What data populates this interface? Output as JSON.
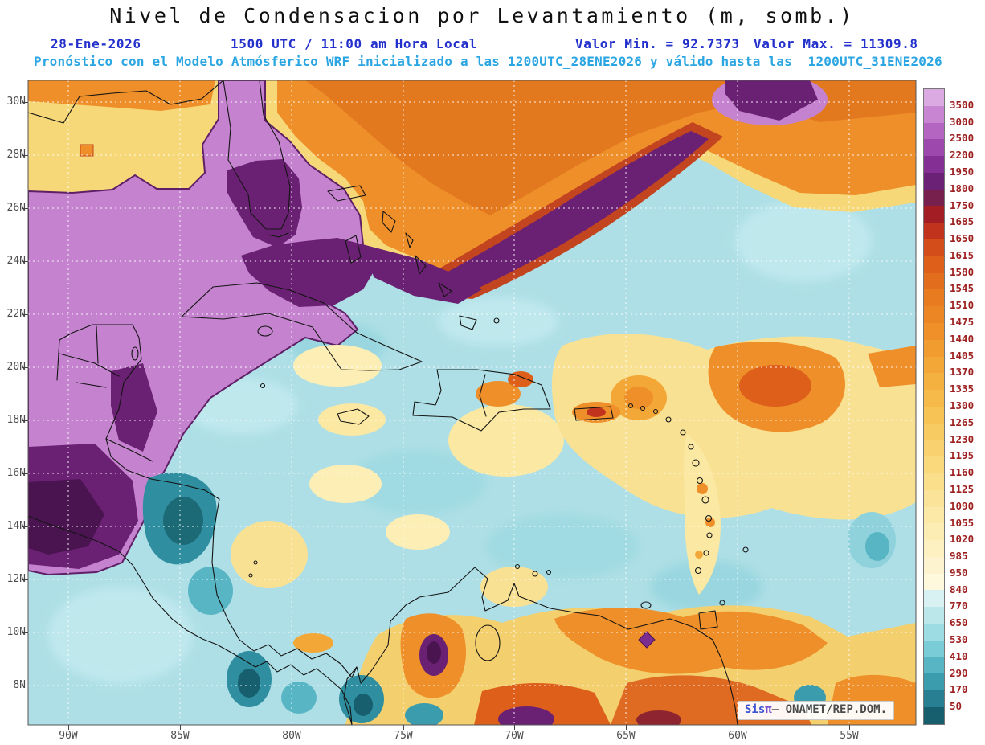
{
  "title": "Nivel de Condensacion por Levantamiento (m, somb.)",
  "header": {
    "date": "28-Ene-2026",
    "time": "1500 UTC / 11:00 am Hora Local",
    "min": "Valor Min. = 92.7373",
    "max": "Valor Max. = 11309.8",
    "forecast": "Pronóstico con el Modelo Atmósferico WRF inicializado a las 1200UTC_28ENE2026 y válido hasta las  1200UTC_31ENE2026"
  },
  "axes": {
    "lat_ticks": [
      "30N",
      "28N",
      "26N",
      "24N",
      "22N",
      "20N",
      "18N",
      "16N",
      "14N",
      "12N",
      "10N",
      "8N"
    ],
    "lon_ticks": [
      "90W",
      "85W",
      "80W",
      "75W",
      "70W",
      "65W",
      "60W",
      "55W"
    ]
  },
  "colorbar": {
    "units": "m",
    "levels": [
      "3500",
      "3000",
      "2500",
      "2200",
      "1950",
      "1800",
      "1750",
      "1685",
      "1650",
      "1615",
      "1580",
      "1545",
      "1510",
      "1475",
      "1440",
      "1405",
      "1370",
      "1335",
      "1300",
      "1265",
      "1230",
      "1195",
      "1160",
      "1125",
      "1090",
      "1055",
      "1020",
      "985",
      "950",
      "840",
      "770",
      "650",
      "530",
      "410",
      "290",
      "170",
      "50"
    ],
    "colors": [
      "#dcaae2",
      "#c886d2",
      "#b465c2",
      "#9c48ad",
      "#832f94",
      "#6b2175",
      "#77204e",
      "#a31d25",
      "#c2331d",
      "#d34d1a",
      "#dd5f1a",
      "#e26d1c",
      "#e87a1f",
      "#ec8523",
      "#ef9128",
      "#f19c2e",
      "#f3a736",
      "#f4b13f",
      "#f6ba4a",
      "#f7c355",
      "#f8cb62",
      "#f9d26f",
      "#fad97d",
      "#fbdf8b",
      "#fbe499",
      "#fce9a7",
      "#fcedb5",
      "#fdf1c2",
      "#fdf4cf",
      "#fef8dd",
      "#d8f1f2",
      "#bce7ea",
      "#9cdce2",
      "#7accd7",
      "#58b5c4",
      "#3a9cad",
      "#277f91",
      "#175f6e"
    ]
  },
  "watermark": {
    "sis": "Sis",
    "pi": "π",
    "credit": "– ONAMET/REP.DOM."
  }
}
